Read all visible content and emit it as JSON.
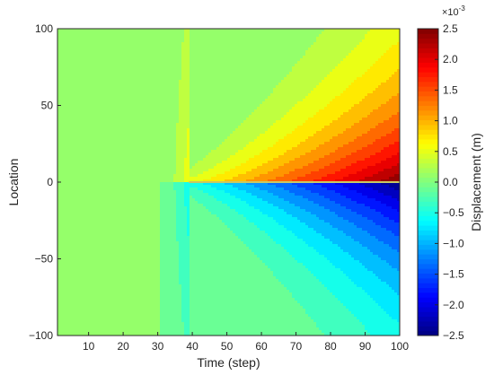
{
  "chart_data": {
    "type": "heatmap",
    "subtype": "filled-contour",
    "xlabel": "Time (step)",
    "ylabel": "Location",
    "xlim": [
      1,
      100
    ],
    "ylim": [
      -100,
      100
    ],
    "x_ticks": [
      10,
      20,
      30,
      40,
      50,
      60,
      70,
      80,
      90,
      100
    ],
    "y_ticks": [
      -100,
      -50,
      0,
      50,
      100
    ],
    "y_tick_labels": [
      "−100",
      "−50",
      "0",
      "50",
      "100"
    ],
    "colorbar": {
      "label": "Displacement (m)",
      "exponent_label": "×10",
      "exponent": "-3",
      "range": [
        -2.5,
        2.5
      ],
      "ticks": [
        -2.5,
        -2.0,
        -1.5,
        -1.0,
        -0.5,
        0.0,
        0.5,
        1.0,
        1.5,
        2.0,
        2.5
      ],
      "tick_labels": [
        "−2.5",
        "−2.0",
        "−1.5",
        "−1.0",
        "−0.5",
        "0.0",
        "0.5",
        "1.0",
        "1.5",
        "2.0",
        "2.5"
      ],
      "colormap": "jet",
      "units_scale": 0.001
    },
    "field": {
      "description_units": "displacement in 1e-3 m",
      "source_time": 39,
      "source_location": 0,
      "boundary_time": 31,
      "max_amplitude": 2.5,
      "contour_levels": 24
    },
    "grid": false
  }
}
